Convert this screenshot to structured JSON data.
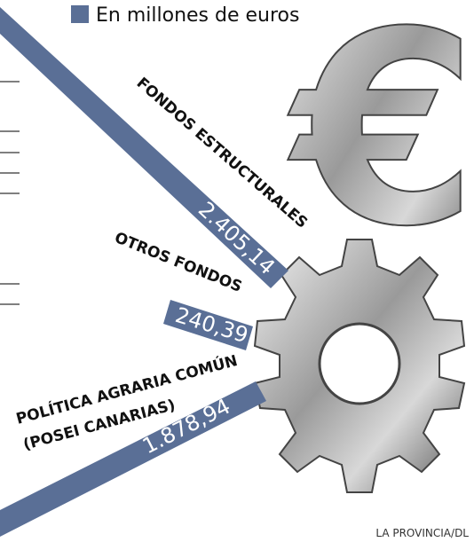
{
  "legend": "En millones de euros",
  "items": [
    {
      "label": "FONDOS ESTRUCTURALES",
      "value": "2.405,14"
    },
    {
      "label": "OTROS FONDOS",
      "value": "240,39"
    },
    {
      "label": "POLÍTICA AGRARIA COMÚN",
      "sublabel": "(POSEI CANARIAS)",
      "value": "1.878,94"
    }
  ],
  "credit": "LA PROVINCIA/DL"
}
